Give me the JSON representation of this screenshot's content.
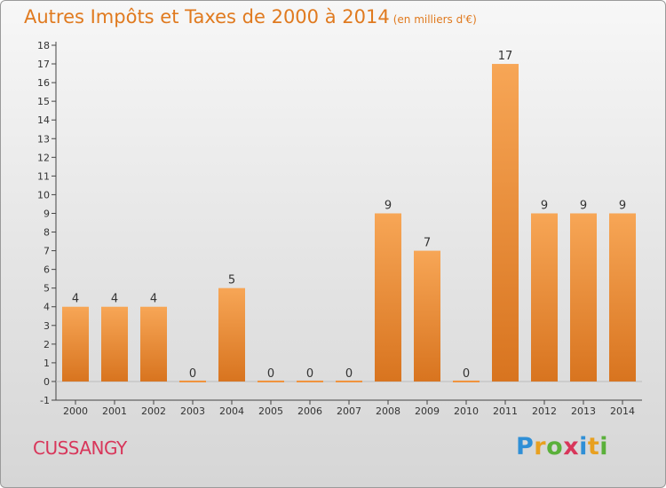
{
  "header": {
    "title": "Autres Impôts et Taxes de 2000 à 2014",
    "subtitle": "(en milliers d'€)"
  },
  "footer": {
    "commune": "CUSSANGY",
    "logo": {
      "letters": [
        "P",
        "r",
        "o",
        "x",
        "i",
        "t",
        "i"
      ],
      "colors": [
        "#2f8fd6",
        "#e8a020",
        "#5ab03a",
        "#d8365a",
        "#2f8fd6",
        "#e8a020",
        "#5ab03a"
      ]
    }
  },
  "chart_data": {
    "type": "bar",
    "title": "Autres Impôts et Taxes de 2000 à 2014",
    "subtitle": "(en milliers d'€)",
    "categories": [
      "2000",
      "2001",
      "2002",
      "2003",
      "2004",
      "2005",
      "2006",
      "2007",
      "2008",
      "2009",
      "2010",
      "2011",
      "2012",
      "2013",
      "2014"
    ],
    "values": [
      4,
      4,
      4,
      0,
      5,
      0,
      0,
      0,
      9,
      7,
      0,
      17,
      9,
      9,
      9
    ],
    "value_labels": [
      "4",
      "4",
      "4",
      "0",
      "5",
      "0",
      "0",
      "0",
      "9",
      "7",
      "0",
      "17",
      "9",
      "9",
      "9"
    ],
    "yticks": [
      "-1",
      "0",
      "1",
      "2",
      "3",
      "4",
      "5",
      "6",
      "7",
      "8",
      "9",
      "10",
      "11",
      "12",
      "13",
      "14",
      "15",
      "16",
      "17",
      "18"
    ],
    "ylim": [
      -1,
      18
    ],
    "xlabel": "",
    "ylabel": "",
    "grid": false,
    "bar_color": "#f0913a",
    "bar_color_dark": "#d8741f"
  }
}
